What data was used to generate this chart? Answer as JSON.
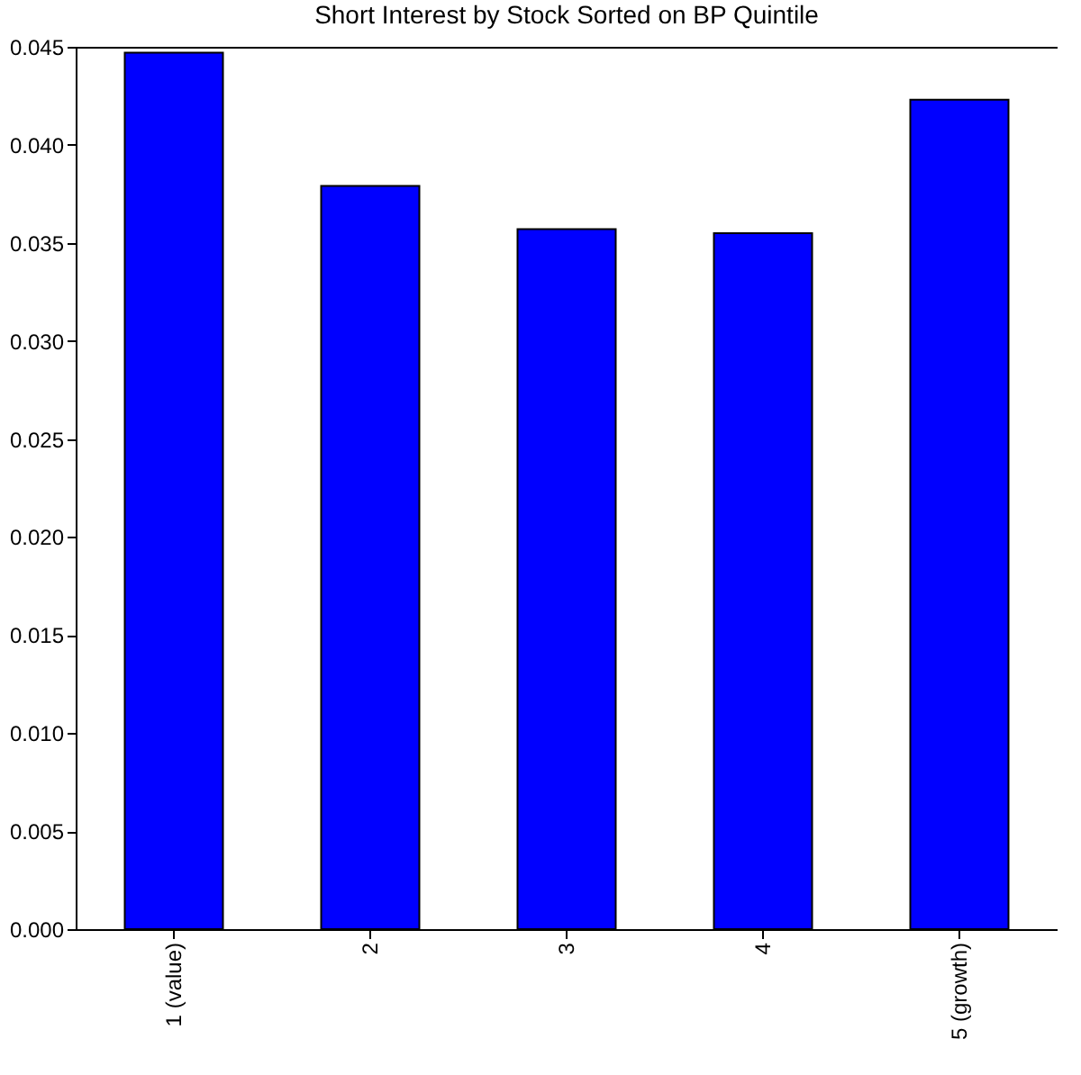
{
  "chart_data": {
    "type": "bar",
    "title": "Short Interest by Stock Sorted on BP Quintile",
    "categories": [
      "1 (value)",
      "2",
      "3",
      "4",
      "5 (growth)"
    ],
    "values": [
      0.0447,
      0.0379,
      0.0357,
      0.0355,
      0.0423
    ],
    "color": "#0000ff",
    "ylim": [
      0,
      0.045
    ],
    "yticks": [
      {
        "value": 0,
        "label": "0.000"
      },
      {
        "value": 0.005,
        "label": "0.005"
      },
      {
        "value": 0.01,
        "label": "0.010"
      },
      {
        "value": 0.015,
        "label": "0.015"
      },
      {
        "value": 0.02,
        "label": "0.020"
      },
      {
        "value": 0.025,
        "label": "0.025"
      },
      {
        "value": 0.03,
        "label": "0.030"
      },
      {
        "value": 0.035,
        "label": "0.035"
      },
      {
        "value": 0.04,
        "label": "0.040"
      },
      {
        "value": 0.045,
        "label": "0.045"
      }
    ],
    "grid": false
  }
}
